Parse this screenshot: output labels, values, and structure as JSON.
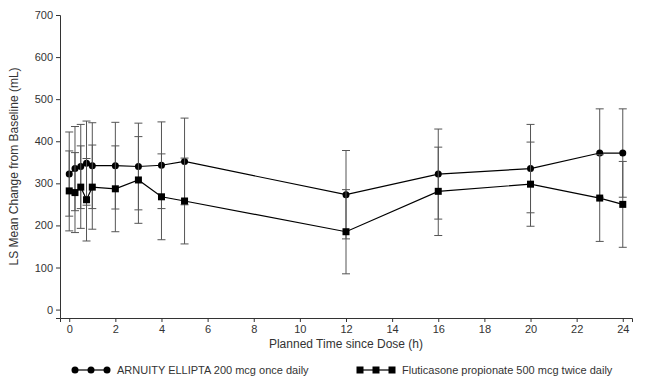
{
  "chart_data": {
    "type": "line",
    "x_label": "Planned Time since Dose (h)",
    "y_label": "LS Mean Change from Baseline (mL)",
    "x": [
      0,
      0.25,
      0.5,
      0.75,
      1,
      2,
      3,
      4,
      5,
      12,
      16,
      20,
      23,
      24
    ],
    "series": [
      {
        "name": "ARNUITY ELLIPTA 200 mcg once daily",
        "color": "#000000",
        "marker": "circle",
        "line_style": "solid",
        "values": [
          322,
          335,
          340,
          348,
          342,
          342,
          340,
          343,
          352,
          273,
          322,
          335,
          372,
          372
        ],
        "errors": [
          100,
          100,
          100,
          100,
          102,
          103,
          103,
          103,
          103,
          105,
          107,
          105,
          105,
          105
        ]
      },
      {
        "name": "Fluticasone propionate 500 mcg twice daily",
        "color": "#000000",
        "marker": "square",
        "line_style": "solid",
        "values": [
          282,
          278,
          291,
          261,
          291,
          287,
          308,
          268,
          258,
          185,
          281,
          298,
          265,
          250
        ],
        "errors": [
          95,
          95,
          98,
          98,
          100,
          102,
          103,
          102,
          102,
          100,
          105,
          100,
          103,
          102
        ]
      }
    ],
    "xlim": [
      -0.4,
      24.4
    ],
    "ylim": [
      -20,
      700
    ],
    "xticks": [
      0,
      2,
      4,
      6,
      8,
      10,
      12,
      14,
      16,
      18,
      20,
      22,
      24
    ],
    "yticks": [
      0,
      100,
      200,
      300,
      400,
      500,
      600,
      700
    ],
    "legend": "bottom",
    "grid": false
  }
}
